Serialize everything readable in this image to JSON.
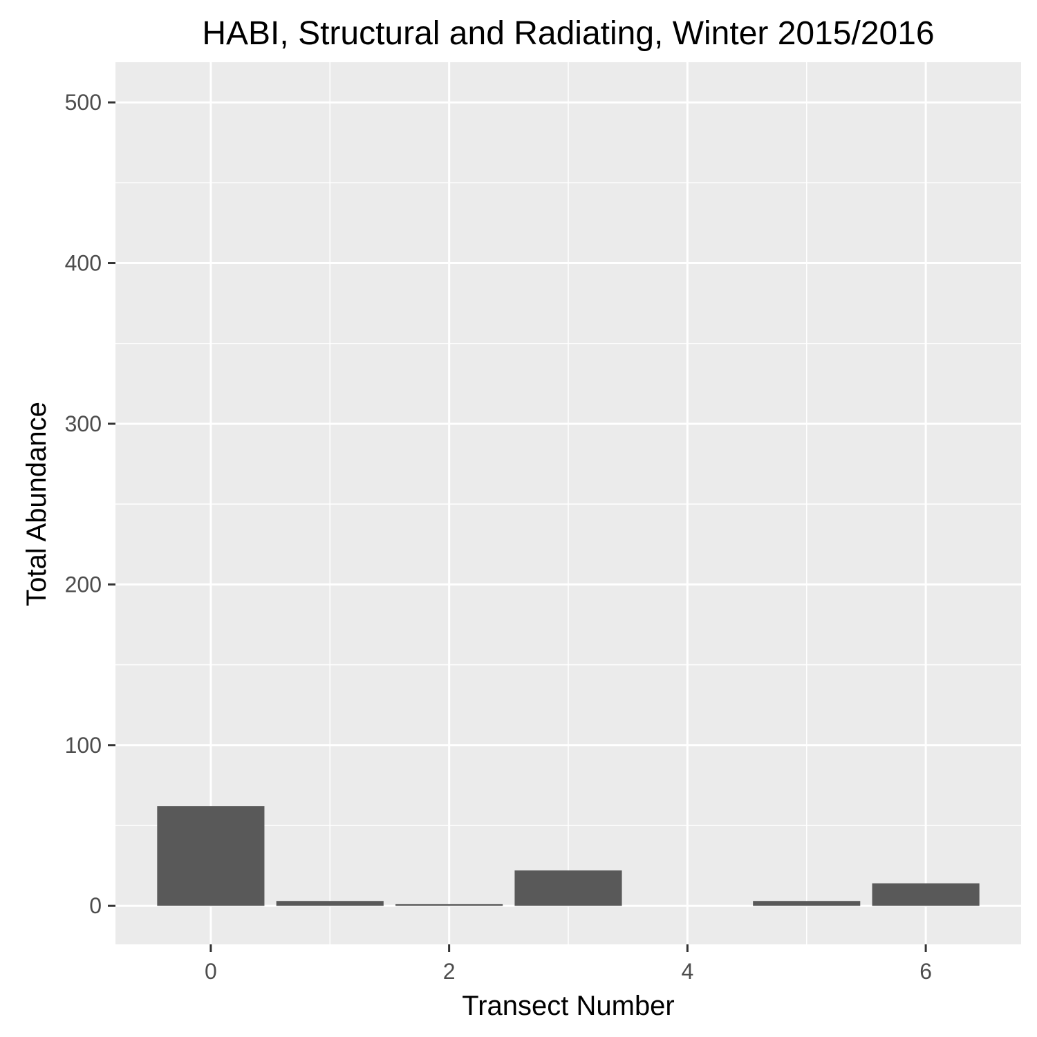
{
  "chart_data": {
    "type": "bar",
    "title": "HABI, Structural and Radiating, Winter 2015/2016",
    "xlabel": "Transect Number",
    "ylabel": "Total Abundance",
    "x": [
      0,
      1,
      2,
      3,
      4,
      5,
      6
    ],
    "values": [
      62,
      3,
      1,
      22,
      0,
      3,
      14
    ],
    "xlim": [
      -0.8,
      6.8
    ],
    "ylim": [
      -24,
      525
    ],
    "xticks": [
      0,
      2,
      4,
      6
    ],
    "yticks": [
      0,
      100,
      200,
      300,
      400,
      500
    ],
    "xtick_labels": [
      "0",
      "2",
      "4",
      "6"
    ],
    "ytick_labels": [
      "0",
      "100",
      "200",
      "300",
      "400",
      "500"
    ],
    "grid": true,
    "legend": "none",
    "colors": {
      "panel_background": "#ebebeb",
      "grid": "#ffffff",
      "bar_fill": "#595959",
      "tick_text": "#4d4d4d",
      "tick_mark": "#333333"
    }
  }
}
